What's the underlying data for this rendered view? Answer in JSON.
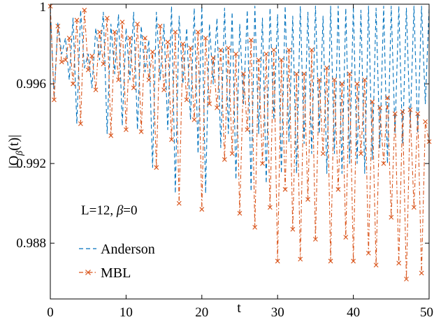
{
  "chart_data": {
    "type": "line",
    "xlabel": "t",
    "ylabel_main": "|O",
    "ylabel_sub": "β",
    "ylabel_tail": "(t)|",
    "xlim": [
      0,
      50
    ],
    "ylim": [
      0.9852,
      1.0
    ],
    "xticks": [
      0,
      10,
      20,
      30,
      40,
      50
    ],
    "xtick_labels": [
      "0",
      "10",
      "20",
      "30",
      "40",
      "50"
    ],
    "yticks": [
      0.988,
      0.992,
      0.996,
      1.0
    ],
    "ytick_labels": [
      "0.988",
      "0.992",
      "0.996",
      "1"
    ],
    "annotation_main": "L=12, ",
    "annotation_beta": "β",
    "annotation_tail": "=0",
    "legend_position": "bottom-left",
    "grid": false,
    "series": [
      {
        "name": "Anderson",
        "color": "#0072BD",
        "style": "dashed",
        "marker": "none",
        "x": [
          0,
          0.5,
          1,
          1.5,
          2,
          2.5,
          3,
          3.5,
          4,
          4.5,
          5,
          5.5,
          6,
          6.5,
          7,
          7.5,
          8,
          8.5,
          9,
          9.5,
          10,
          10.5,
          11,
          11.5,
          12,
          12.5,
          13,
          13.5,
          14,
          14.5,
          15,
          15.5,
          16,
          16.5,
          17,
          17.5,
          18,
          18.5,
          19,
          19.5,
          20,
          20.5,
          21,
          21.5,
          22,
          22.5,
          23,
          23.5,
          24,
          24.5,
          25,
          25.5,
          26,
          26.5,
          27,
          27.5,
          28,
          28.5,
          29,
          29.5,
          30,
          30.5,
          31,
          31.5,
          32,
          32.5,
          33,
          33.5,
          34,
          34.5,
          35,
          35.5,
          36,
          36.5,
          37,
          37.5,
          38,
          38.5,
          39,
          39.5,
          40,
          40.5,
          41,
          41.5,
          42,
          42.5,
          43,
          43.5,
          44,
          44.5,
          45,
          45.5,
          46,
          46.5,
          47,
          47.5,
          48,
          48.5,
          49,
          49.5,
          50
        ],
        "y": [
          0.9998,
          0.9953,
          0.9991,
          0.9975,
          0.9983,
          0.9962,
          0.9993,
          0.994,
          0.9997,
          0.9968,
          0.9975,
          0.9958,
          0.9988,
          0.9972,
          0.9996,
          0.9935,
          0.999,
          0.9965,
          0.9995,
          0.9939,
          0.9988,
          0.9962,
          0.9996,
          0.9937,
          0.9989,
          0.9966,
          0.9982,
          0.9918,
          0.9996,
          0.9962,
          0.999,
          0.9937,
          0.9999,
          0.9905,
          0.9994,
          0.996,
          0.9988,
          0.9942,
          0.9998,
          0.9925,
          0.9999,
          0.9905,
          0.999,
          0.996,
          0.9993,
          0.9928,
          0.9998,
          0.9935,
          0.9996,
          0.9912,
          0.999,
          0.995,
          0.9997,
          0.9906,
          0.9999,
          0.9935,
          0.9993,
          0.991,
          0.9998,
          0.9942,
          0.9995,
          0.9915,
          0.9999,
          0.9931,
          0.9994,
          0.9915,
          0.9999,
          0.993,
          0.9996,
          0.9925,
          0.9999,
          0.9935,
          0.9994,
          0.9915,
          0.9999,
          0.9925,
          0.9999,
          0.9915,
          0.9998,
          0.992,
          0.9999,
          0.992,
          0.9997,
          0.9915,
          0.9999,
          0.9922,
          0.9998,
          0.9928,
          0.9999,
          0.992,
          0.9999,
          0.9935,
          0.9999,
          0.993,
          0.9998,
          0.9938,
          0.9999,
          0.9935,
          0.9999,
          0.995,
          0.9998
        ]
      },
      {
        "name": "MBL",
        "color": "#D95319",
        "style": "dashdot",
        "marker": "x",
        "x": [
          0,
          0.5,
          1,
          1.5,
          2,
          2.5,
          3,
          3.5,
          4,
          4.5,
          5,
          5.5,
          6,
          6.5,
          7,
          7.5,
          8,
          8.5,
          9,
          9.5,
          10,
          10.5,
          11,
          11.5,
          12,
          12.5,
          13,
          13.5,
          14,
          14.5,
          15,
          15.5,
          16,
          16.5,
          17,
          17.5,
          18,
          18.5,
          19,
          19.5,
          20,
          20.5,
          21,
          21.5,
          22,
          22.5,
          23,
          23.5,
          24,
          24.5,
          25,
          25.5,
          26,
          26.5,
          27,
          27.5,
          28,
          28.5,
          29,
          29.5,
          30,
          30.5,
          31,
          31.5,
          32,
          32.5,
          33,
          33.5,
          34,
          34.5,
          35,
          35.5,
          36,
          36.5,
          37,
          37.5,
          38,
          38.5,
          39,
          39.5,
          40,
          40.5,
          41,
          41.5,
          42,
          42.5,
          43,
          43.5,
          44,
          44.5,
          45,
          45.5,
          46,
          46.5,
          47,
          47.5,
          48,
          48.5,
          49,
          49.5,
          50
        ],
        "y": [
          0.9999,
          0.9952,
          0.9989,
          0.9971,
          0.9972,
          0.9983,
          0.996,
          0.9992,
          0.994,
          0.9997,
          0.9967,
          0.9974,
          0.9957,
          0.9986,
          0.997,
          0.9993,
          0.9934,
          0.9986,
          0.9962,
          0.9991,
          0.9937,
          0.9983,
          0.9958,
          0.999,
          0.9936,
          0.9983,
          0.9962,
          0.9976,
          0.9918,
          0.9989,
          0.9957,
          0.9981,
          0.9932,
          0.9986,
          0.99,
          0.998,
          0.9952,
          0.9978,
          0.9942,
          0.9986,
          0.9897,
          0.9983,
          0.995,
          0.9973,
          0.9948,
          0.9977,
          0.9922,
          0.9978,
          0.9925,
          0.9975,
          0.9895,
          0.9965,
          0.9937,
          0.9982,
          0.9888,
          0.9972,
          0.992,
          0.9975,
          0.9898,
          0.9977,
          0.9871,
          0.9972,
          0.9907,
          0.9977,
          0.9887,
          0.9965,
          0.9872,
          0.9965,
          0.9902,
          0.9977,
          0.9882,
          0.9962,
          0.9925,
          0.9968,
          0.9871,
          0.9962,
          0.9907,
          0.996,
          0.9883,
          0.9965,
          0.9871,
          0.996,
          0.9925,
          0.9962,
          0.9875,
          0.9951,
          0.9869,
          0.9948,
          0.992,
          0.9953,
          0.9893,
          0.9945,
          0.987,
          0.9946,
          0.9862,
          0.9947,
          0.9898,
          0.9945,
          0.9865,
          0.9941,
          0.9931
        ]
      }
    ]
  }
}
